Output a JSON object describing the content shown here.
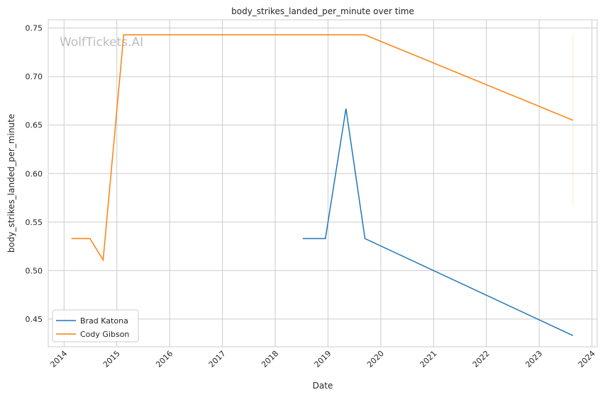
{
  "chart_data": {
    "type": "line",
    "title": "body_strikes_landed_per_minute over time",
    "xlabel": "Date",
    "ylabel": "body_strikes_landed_per_minute",
    "xlim": [
      2013.7,
      2024.1
    ],
    "ylim": [
      0.4215,
      0.7585
    ],
    "x_ticks": [
      "2014",
      "2015",
      "2016",
      "2017",
      "2018",
      "2019",
      "2020",
      "2021",
      "2022",
      "2023",
      "2024"
    ],
    "y_ticks": [
      "0.45",
      "0.50",
      "0.55",
      "0.60",
      "0.65",
      "0.70",
      "0.75"
    ],
    "grid": true,
    "legend_placement": "lower-left",
    "watermark": "WolfTickets.AI",
    "series": [
      {
        "name": "Brad Katona",
        "color": "#1f77b4",
        "x": [
          2018.52,
          2018.95,
          2019.34,
          2019.7,
          2023.64
        ],
        "y": [
          0.533,
          0.533,
          0.667,
          0.533,
          0.433
        ]
      },
      {
        "name": "Cody Gibson",
        "color": "#ff7f0e",
        "x": [
          2014.14,
          2014.49,
          2014.74,
          2015.13,
          2019.7,
          2023.64
        ],
        "y": [
          0.533,
          0.533,
          0.511,
          0.743,
          0.743,
          0.655
        ],
        "band": {
          "x": 2023.64,
          "y_low": 0.567,
          "y_high": 0.743
        }
      }
    ]
  }
}
